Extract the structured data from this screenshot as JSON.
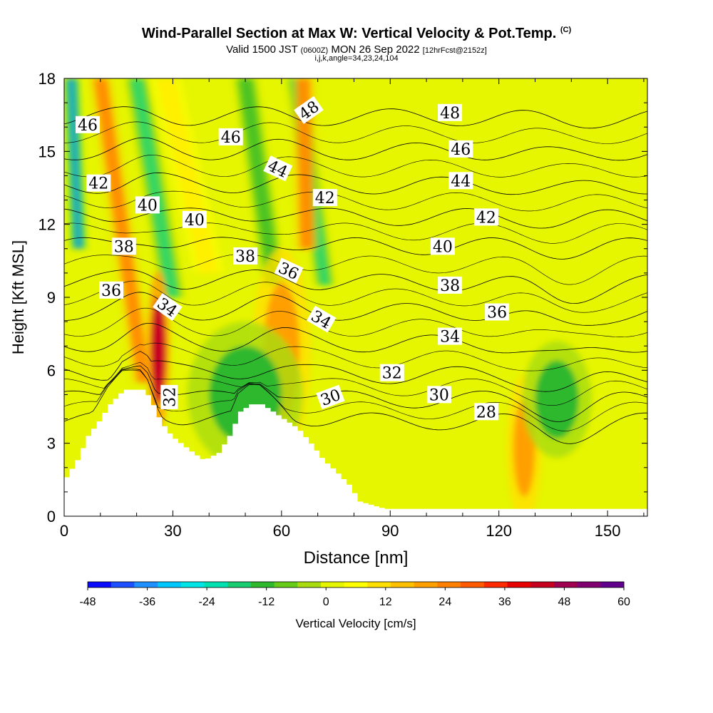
{
  "header": {
    "title": "Wind-Parallel Section at Max W: Vertical Velocity & Pot.Temp.",
    "copyright": "(C)",
    "subtitle_main": "Valid 1500 JST",
    "subtitle_utc": "(0600Z)",
    "subtitle_date": "MON 26 Sep 2022",
    "subtitle_fcst": "[12hrFcst@2152z]",
    "params": "i,j,k,angle=34,23,24,104"
  },
  "chart_data": {
    "type": "heatmap",
    "xlabel": "Distance [nm]",
    "ylabel": "Height [Kft MSL]",
    "xlim": [
      0,
      161
    ],
    "ylim": [
      0,
      18
    ],
    "x_ticks": [
      0,
      30,
      60,
      90,
      120,
      150
    ],
    "y_ticks": [
      0,
      3,
      6,
      9,
      12,
      15,
      18
    ],
    "colorbar": {
      "label": "Vertical Velocity [cm/s]",
      "range": [
        -48,
        60
      ],
      "tick_labels": [
        "-48",
        "-36",
        "-24",
        "-12",
        "0",
        "12",
        "24",
        "36",
        "48",
        "60"
      ],
      "colors": [
        "#0a0aff",
        "#1f50ff",
        "#1f90ff",
        "#00c8ff",
        "#00e6e6",
        "#00e0b0",
        "#18cc70",
        "#2eb82e",
        "#66cc18",
        "#a8dc10",
        "#e6f500",
        "#ffff00",
        "#ffe000",
        "#ffc000",
        "#ffa000",
        "#ff8000",
        "#ff5a00",
        "#ff2a00",
        "#e80000",
        "#c80020",
        "#a00050",
        "#800070",
        "#60008c"
      ]
    },
    "terrain_profile_kft": [
      {
        "x": 0,
        "h": 1.6
      },
      {
        "x": 3,
        "h": 2.3
      },
      {
        "x": 6,
        "h": 3.3
      },
      {
        "x": 9,
        "h": 3.9
      },
      {
        "x": 12,
        "h": 4.6
      },
      {
        "x": 16,
        "h": 5.2
      },
      {
        "x": 21,
        "h": 5.2
      },
      {
        "x": 23,
        "h": 4.9
      },
      {
        "x": 26,
        "h": 3.9
      },
      {
        "x": 29,
        "h": 3.3
      },
      {
        "x": 35,
        "h": 2.6
      },
      {
        "x": 38,
        "h": 2.3
      },
      {
        "x": 42,
        "h": 2.6
      },
      {
        "x": 45,
        "h": 3.3
      },
      {
        "x": 48,
        "h": 4.3
      },
      {
        "x": 51,
        "h": 4.6
      },
      {
        "x": 54,
        "h": 4.6
      },
      {
        "x": 57,
        "h": 4.3
      },
      {
        "x": 61,
        "h": 3.9
      },
      {
        "x": 64,
        "h": 3.6
      },
      {
        "x": 68,
        "h": 2.9
      },
      {
        "x": 71,
        "h": 2.3
      },
      {
        "x": 74,
        "h": 1.9
      },
      {
        "x": 78,
        "h": 1.3
      },
      {
        "x": 81,
        "h": 0.6
      },
      {
        "x": 88,
        "h": 0.3
      },
      {
        "x": 161,
        "h": 0.3
      }
    ],
    "theta_contours": [
      {
        "label": "28",
        "z_far": 3.9
      },
      {
        "label": "30",
        "z_far": 4.8
      },
      {
        "label": "32",
        "z_far": 5.8
      },
      {
        "label": "34",
        "z_far": 7.1
      },
      {
        "label": "36",
        "z_far": 8.4
      },
      {
        "label": "38",
        "z_far": 9.6
      },
      {
        "label": "40",
        "z_far": 11.1
      },
      {
        "label": "42",
        "z_far": 12.3
      },
      {
        "label": "44",
        "z_far": 13.6
      },
      {
        "label": "46",
        "z_far": 15.0
      },
      {
        "label": "48",
        "z_far": 16.4
      }
    ],
    "theta_labels": [
      {
        "text": "46",
        "x": 6.5,
        "y": 16.1,
        "rot": 0
      },
      {
        "text": "42",
        "x": 9.5,
        "y": 13.7,
        "rot": 0
      },
      {
        "text": "40",
        "x": 23,
        "y": 12.8,
        "rot": 0
      },
      {
        "text": "38",
        "x": 16.5,
        "y": 11.1,
        "rot": 0
      },
      {
        "text": "36",
        "x": 13,
        "y": 9.3,
        "rot": 0
      },
      {
        "text": "34",
        "x": 28.5,
        "y": 8.6,
        "rot": 35
      },
      {
        "text": "32",
        "x": 29,
        "y": 4.9,
        "rot": -90
      },
      {
        "text": "40",
        "x": 36,
        "y": 12.2,
        "rot": 0
      },
      {
        "text": "46",
        "x": 46,
        "y": 15.6,
        "rot": 0
      },
      {
        "text": "38",
        "x": 50,
        "y": 10.7,
        "rot": 0
      },
      {
        "text": "44",
        "x": 59,
        "y": 14.3,
        "rot": 25
      },
      {
        "text": "36",
        "x": 62,
        "y": 10.1,
        "rot": 25
      },
      {
        "text": "48",
        "x": 67.5,
        "y": 16.7,
        "rot": -35
      },
      {
        "text": "42",
        "x": 72,
        "y": 13.1,
        "rot": 0
      },
      {
        "text": "34",
        "x": 71,
        "y": 8.1,
        "rot": 30
      },
      {
        "text": "30",
        "x": 73.5,
        "y": 4.9,
        "rot": -20
      },
      {
        "text": "32",
        "x": 90.5,
        "y": 5.9,
        "rot": 0
      },
      {
        "text": "48",
        "x": 106.5,
        "y": 16.6,
        "rot": 0
      },
      {
        "text": "46",
        "x": 109.5,
        "y": 15.1,
        "rot": 0
      },
      {
        "text": "44",
        "x": 109.5,
        "y": 13.8,
        "rot": 0
      },
      {
        "text": "42",
        "x": 116.5,
        "y": 12.3,
        "rot": 0
      },
      {
        "text": "40",
        "x": 104.5,
        "y": 11.1,
        "rot": 0
      },
      {
        "text": "38",
        "x": 106.5,
        "y": 9.5,
        "rot": 0
      },
      {
        "text": "36",
        "x": 119.5,
        "y": 8.4,
        "rot": 0
      },
      {
        "text": "34",
        "x": 106.5,
        "y": 7.4,
        "rot": 0
      },
      {
        "text": "30",
        "x": 103.5,
        "y": 5.0,
        "rot": 0
      },
      {
        "text": "28",
        "x": 116.5,
        "y": 4.3,
        "rot": 0
      }
    ],
    "w_features_cm_s": [
      {
        "kind": "band",
        "x_bottom": 22,
        "y_bottom": 5.5,
        "x_top": 10,
        "y_top": 18,
        "w": 30,
        "width": 3.5
      },
      {
        "kind": "band",
        "x_bottom": 30,
        "y_bottom": 9.0,
        "x_top": 20,
        "y_top": 18,
        "w": -20,
        "width": 3.5
      },
      {
        "kind": "band",
        "x_bottom": 40,
        "y_bottom": 10.0,
        "x_top": 28,
        "y_top": 18,
        "w": 12,
        "width": 5
      },
      {
        "kind": "band",
        "x_bottom": 58,
        "y_bottom": 9.5,
        "x_top": 50,
        "y_top": 18,
        "w": -15,
        "width": 3.5
      },
      {
        "kind": "band",
        "x_bottom": 72,
        "y_bottom": 9.5,
        "x_top": 64,
        "y_top": 18,
        "w": -20,
        "width": 3
      },
      {
        "kind": "band",
        "x_bottom": 67,
        "y_bottom": 11.0,
        "x_top": 66,
        "y_top": 18,
        "w": 30,
        "width": 3.5
      },
      {
        "kind": "band",
        "x_bottom": 4,
        "y_bottom": 11.0,
        "x_top": 2,
        "y_top": 18,
        "w": -36,
        "width": 2.5
      },
      {
        "kind": "blob",
        "x": 26,
        "y": 6.8,
        "w": 42,
        "rx": 2,
        "ry": 2.2
      },
      {
        "kind": "blob",
        "x": 60,
        "y": 6.8,
        "w": 20,
        "rx": 5,
        "ry": 2.8
      },
      {
        "kind": "blob",
        "x": 127,
        "y": 2.8,
        "w": 22,
        "rx": 3,
        "ry": 2
      },
      {
        "kind": "blob",
        "x": 136,
        "y": 4.8,
        "w": -12,
        "rx": 6,
        "ry": 1.6
      },
      {
        "kind": "blob",
        "x": 50,
        "y": 5.0,
        "w": -12,
        "rx": 10,
        "ry": 2
      }
    ]
  }
}
